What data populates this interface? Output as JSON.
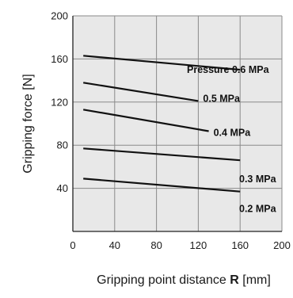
{
  "chart_data": {
    "type": "line",
    "xlabel_prefix": "Gripping point distance",
    "xlabel_symbol": "R",
    "xlabel_unit": "[mm]",
    "ylabel": "Gripping force [N]",
    "xlim": [
      0,
      200
    ],
    "ylim": [
      0,
      200
    ],
    "x_ticks": [
      "0",
      "40",
      "80",
      "120",
      "160",
      "200"
    ],
    "y_ticks": [
      "40",
      "80",
      "120",
      "160",
      "200"
    ],
    "grid": true,
    "series": [
      {
        "name": "Pressure 0.6 MPa",
        "x": [
          10,
          160
        ],
        "y": [
          163,
          150
        ]
      },
      {
        "name": "0.5 MPa",
        "x": [
          10,
          120
        ],
        "y": [
          138,
          121
        ]
      },
      {
        "name": "0.4 MPa",
        "x": [
          10,
          130
        ],
        "y": [
          113,
          93
        ]
      },
      {
        "name": "0.3 MPa",
        "x": [
          10,
          160
        ],
        "y": [
          77,
          66
        ]
      },
      {
        "name": "0.2 MPa",
        "x": [
          10,
          160
        ],
        "y": [
          49,
          37
        ]
      }
    ],
    "colors": {
      "plot_background": "#e8e8e8",
      "line": "#111111",
      "grid": "#8a8a8a"
    }
  }
}
